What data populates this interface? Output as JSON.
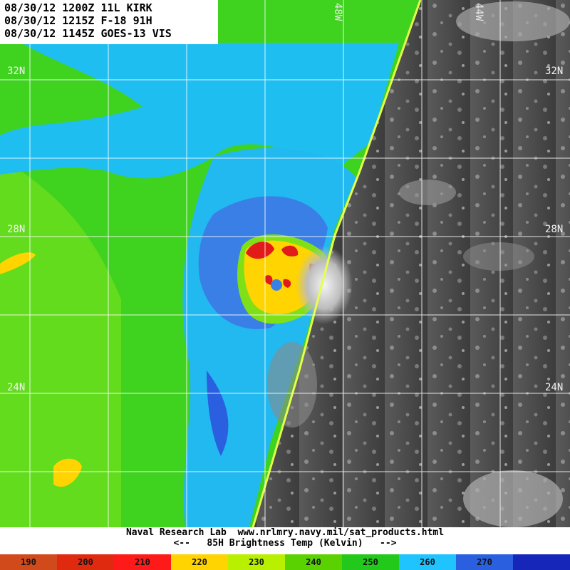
{
  "header": {
    "line1": "08/30/12 1200Z 11L KIRK",
    "line2": "08/30/12 1215Z F-18 91H",
    "line3": "08/30/12 1145Z GOES-13 VIS"
  },
  "grid": {
    "lat_labels": [
      "32N",
      "28N",
      "24N"
    ],
    "lon_labels": [
      "48W",
      "44W"
    ]
  },
  "footer": {
    "source": "Naval Research Lab  www.nrlmry.navy.mil/sat_products.html",
    "legend_title": "<--   85H Brightness Temp (Kelvin)   -->"
  },
  "colorbar": [
    {
      "label": "190",
      "color": "#d04a1c"
    },
    {
      "label": "200",
      "color": "#e02a10"
    },
    {
      "label": "210",
      "color": "#ff1a1a"
    },
    {
      "label": "220",
      "color": "#ffd400"
    },
    {
      "label": "230",
      "color": "#b8f000"
    },
    {
      "label": "240",
      "color": "#5ad100"
    },
    {
      "label": "250",
      "color": "#22c81a"
    },
    {
      "label": "260",
      "color": "#1fc4ff"
    },
    {
      "label": "270",
      "color": "#2a5fe0"
    },
    {
      "label": "",
      "color": "#1626b8"
    }
  ]
}
